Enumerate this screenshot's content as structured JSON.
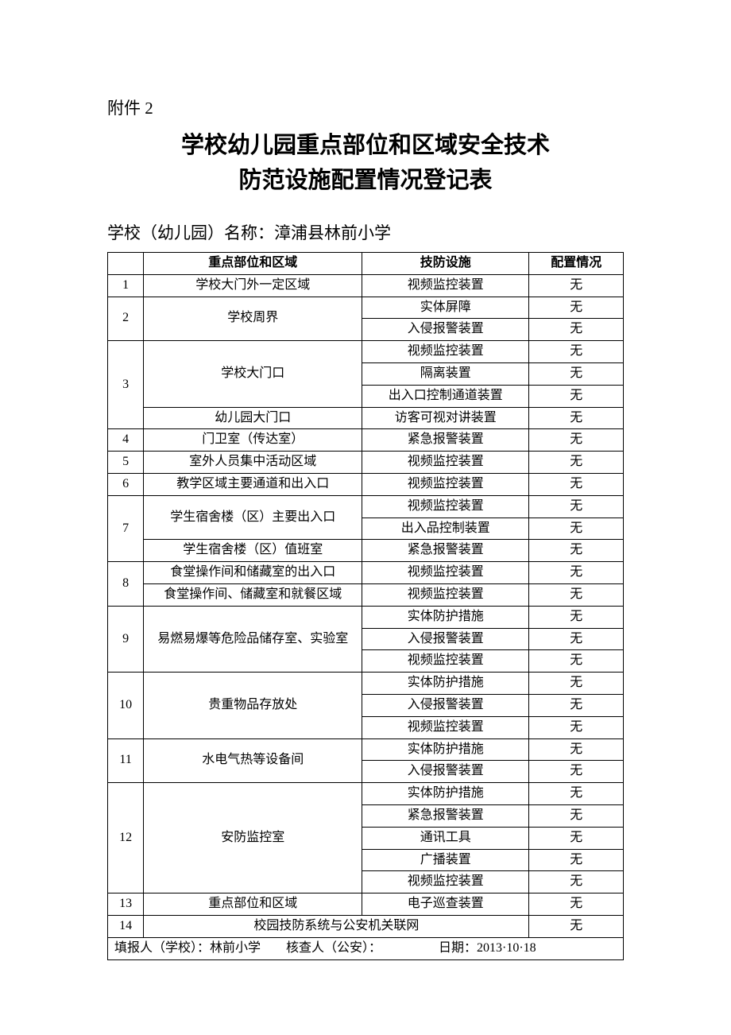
{
  "attachment": "附件 2",
  "title_line1": "学校幼儿园重点部位和区域安全技术",
  "title_line2": "防范设施配置情况登记表",
  "school_name": "学校（幼儿园）名称：漳浦县林前小学",
  "headers": {
    "num": "",
    "area": "重点部位和区域",
    "facility": "技防设施",
    "status": "配置情况"
  },
  "rows": [
    {
      "num": "1",
      "area": "学校大门外一定区域",
      "area_rowspan": 1,
      "num_rowspan": 1,
      "facility": "视频监控装置",
      "status": "无"
    },
    {
      "num": "2",
      "area": "学校周界",
      "area_rowspan": 2,
      "num_rowspan": 2,
      "facility": "实体屏障",
      "status": "无"
    },
    {
      "facility": "入侵报警装置",
      "status": "无"
    },
    {
      "num": "3",
      "area": "学校大门口",
      "area_rowspan": 3,
      "num_rowspan": 4,
      "facility": "视频监控装置",
      "status": "无"
    },
    {
      "facility": "隔离装置",
      "status": "无"
    },
    {
      "facility": "出入口控制通道装置",
      "status": "无"
    },
    {
      "area": "幼儿园大门口",
      "area_rowspan": 1,
      "facility": "访客可视对讲装置",
      "status": "无"
    },
    {
      "num": "4",
      "area": "门卫室（传达室）",
      "area_rowspan": 1,
      "num_rowspan": 1,
      "facility": "紧急报警装置",
      "status": "无"
    },
    {
      "num": "5",
      "area": "室外人员集中活动区域",
      "area_rowspan": 1,
      "num_rowspan": 1,
      "facility": "视频监控装置",
      "status": "无"
    },
    {
      "num": "6",
      "area": "教学区域主要通道和出入口",
      "area_rowspan": 1,
      "num_rowspan": 1,
      "facility": "视频监控装置",
      "status": "无"
    },
    {
      "num": "7",
      "area": "学生宿舍楼（区）主要出入口",
      "area_rowspan": 2,
      "num_rowspan": 3,
      "facility": "视频监控装置",
      "status": "无"
    },
    {
      "facility": "出入品控制装置",
      "status": "无"
    },
    {
      "area": "学生宿舍楼（区）值班室",
      "area_rowspan": 1,
      "facility": "紧急报警装置",
      "status": "无"
    },
    {
      "num": "8",
      "area": "食堂操作间和储藏室的出入口",
      "area_rowspan": 1,
      "num_rowspan": 2,
      "facility": "视频监控装置",
      "status": "无"
    },
    {
      "area": "食堂操作间、储藏室和就餐区域",
      "area_rowspan": 1,
      "facility": "视频监控装置",
      "status": "无"
    },
    {
      "num": "9",
      "area": "易燃易爆等危险品储存室、实验室",
      "area_rowspan": 3,
      "num_rowspan": 3,
      "facility": "实体防护措施",
      "status": "无"
    },
    {
      "facility": "入侵报警装置",
      "status": "无"
    },
    {
      "facility": "视频监控装置",
      "status": "无"
    },
    {
      "num": "10",
      "area": "贵重物品存放处",
      "area_rowspan": 3,
      "num_rowspan": 3,
      "facility": "实体防护措施",
      "status": "无"
    },
    {
      "facility": "入侵报警装置",
      "status": "无"
    },
    {
      "facility": "视频监控装置",
      "status": "无"
    },
    {
      "num": "11",
      "area": "水电气热等设备间",
      "area_rowspan": 2,
      "num_rowspan": 2,
      "facility": "实体防护措施",
      "status": "无"
    },
    {
      "facility": "入侵报警装置",
      "status": "无"
    },
    {
      "num": "12",
      "area": "安防监控室",
      "area_rowspan": 5,
      "num_rowspan": 5,
      "facility": "实体防护措施",
      "status": "无"
    },
    {
      "facility": "紧急报警装置",
      "status": "无"
    },
    {
      "facility": "通讯工具",
      "status": "无"
    },
    {
      "facility": "广播装置",
      "status": "无"
    },
    {
      "facility": "视频监控装置",
      "status": "无"
    },
    {
      "num": "13",
      "area": "重点部位和区域",
      "area_rowspan": 1,
      "num_rowspan": 1,
      "facility": "电子巡查装置",
      "status": "无"
    },
    {
      "num": "14",
      "area": "校园技防系统与公安机关联网",
      "area_colspan": 2,
      "num_rowspan": 1,
      "status": "无"
    }
  ],
  "footer": "填报人（学校）：林前小学　　核查人（公安）：　　　　　日期：2013·10·18"
}
